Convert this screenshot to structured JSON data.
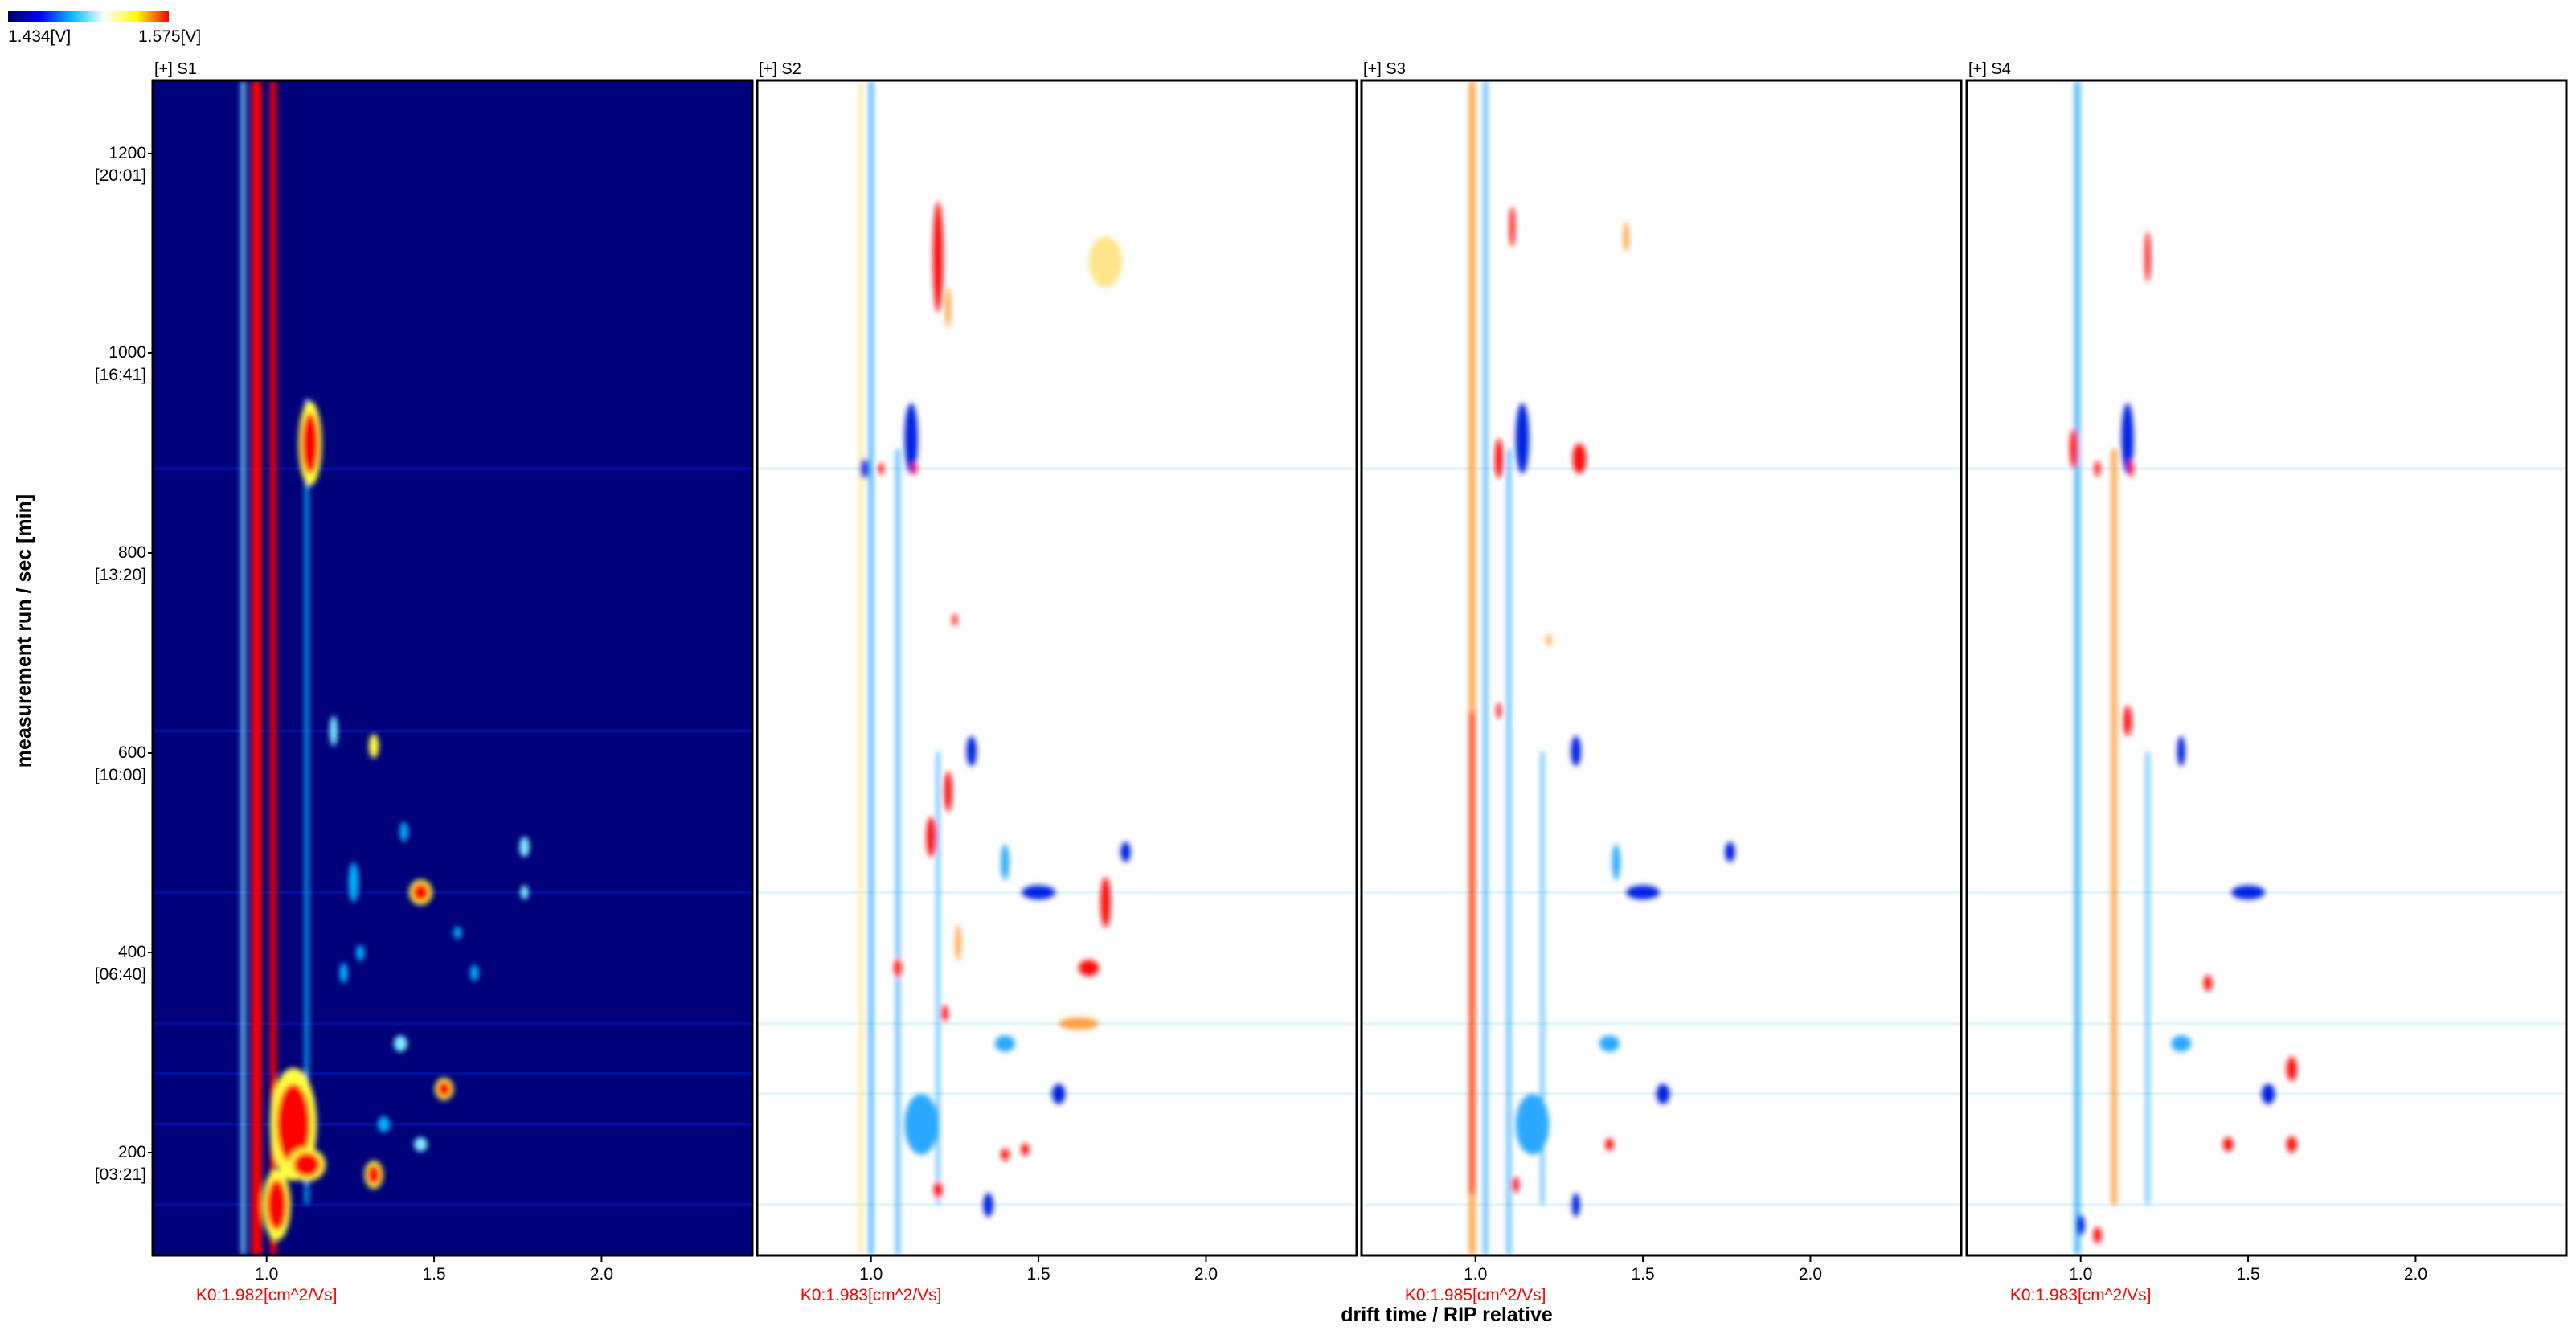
{
  "colorbar": {
    "min_label": "1.434[V]",
    "max_label": "1.575[V]",
    "colors": [
      "#000060",
      "#0000ff",
      "#00bfff",
      "#ffffff",
      "#ffff00",
      "#ff0000"
    ]
  },
  "y_axis": {
    "label": "measurement run / sec [min]",
    "ticks": [
      {
        "value": 200,
        "sec": "200",
        "min": "[03:21]"
      },
      {
        "value": 400,
        "sec": "400",
        "min": "[06:40]"
      },
      {
        "value": 600,
        "sec": "600",
        "min": "[10:00]"
      },
      {
        "value": 800,
        "sec": "800",
        "min": "[13:20]"
      },
      {
        "value": 1000,
        "sec": "1000",
        "min": "[16:41]"
      },
      {
        "value": 1200,
        "sec": "1200",
        "min": "[20:01]"
      }
    ]
  },
  "x_axis": {
    "label": "drift time / RIP relative",
    "ticks": [
      {
        "value": 1.0,
        "label": "1.0"
      },
      {
        "value": 1.5,
        "label": "1.5"
      },
      {
        "value": 2.0,
        "label": "2.0"
      }
    ]
  },
  "colors": {
    "background_low": "#00007a",
    "difference_bg": "#ffffff",
    "k0_label": "#ff0000",
    "positive": "#ff0000",
    "negative": "#0000ff"
  },
  "chart_data": {
    "type": "heatmap",
    "xlim": [
      0.66,
      2.45
    ],
    "ylim": [
      100,
      1265
    ],
    "panels": [
      {
        "title": "[+] S1",
        "k0": "K0:1.982[cm^2/Vs]",
        "mode": "reference",
        "lines": [
          {
            "x": 0.93,
            "y0": 100,
            "y1": 1265,
            "w": 0.012,
            "level": 0.65
          },
          {
            "x": 0.97,
            "y0": 100,
            "y1": 1265,
            "w": 0.03,
            "level": 1.0
          },
          {
            "x": 1.02,
            "y0": 100,
            "y1": 1265,
            "w": 0.018,
            "level": 1.0
          },
          {
            "x": 1.12,
            "y0": 150,
            "y1": 950,
            "w": 0.012,
            "level": 0.5
          }
        ],
        "spots": [
          {
            "x": 1.13,
            "y": 905,
            "rx": 0.025,
            "ry": 30,
            "level": 1.0
          },
          {
            "x": 1.08,
            "y": 230,
            "rx": 0.05,
            "ry": 40,
            "level": 1.0
          },
          {
            "x": 1.12,
            "y": 190,
            "rx": 0.04,
            "ry": 12,
            "level": 1.0
          },
          {
            "x": 1.32,
            "y": 180,
            "rx": 0.02,
            "ry": 10,
            "level": 1.0
          },
          {
            "x": 1.46,
            "y": 460,
            "rx": 0.025,
            "ry": 9,
            "level": 1.0
          },
          {
            "x": 1.53,
            "y": 265,
            "rx": 0.02,
            "ry": 8,
            "level": 1.0
          },
          {
            "x": 1.32,
            "y": 605,
            "rx": 0.015,
            "ry": 12,
            "level": 0.9
          },
          {
            "x": 1.2,
            "y": 620,
            "rx": 0.012,
            "ry": 15,
            "level": 0.6
          },
          {
            "x": 1.77,
            "y": 505,
            "rx": 0.015,
            "ry": 10,
            "level": 0.75
          },
          {
            "x": 1.77,
            "y": 460,
            "rx": 0.012,
            "ry": 7,
            "level": 0.6
          },
          {
            "x": 1.26,
            "y": 470,
            "rx": 0.015,
            "ry": 20,
            "level": 0.5
          },
          {
            "x": 1.4,
            "y": 310,
            "rx": 0.02,
            "ry": 8,
            "level": 0.6
          },
          {
            "x": 1.35,
            "y": 230,
            "rx": 0.018,
            "ry": 8,
            "level": 0.55
          },
          {
            "x": 1.46,
            "y": 210,
            "rx": 0.02,
            "ry": 7,
            "level": 0.7
          },
          {
            "x": 1.03,
            "y": 150,
            "rx": 0.03,
            "ry": 25,
            "level": 1.0
          },
          {
            "x": 1.23,
            "y": 380,
            "rx": 0.012,
            "ry": 10,
            "level": 0.55
          },
          {
            "x": 1.28,
            "y": 400,
            "rx": 0.012,
            "ry": 8,
            "level": 0.5
          },
          {
            "x": 1.62,
            "y": 380,
            "rx": 0.012,
            "ry": 8,
            "level": 0.5
          },
          {
            "x": 1.57,
            "y": 420,
            "rx": 0.012,
            "ry": 6,
            "level": 0.45
          },
          {
            "x": 1.41,
            "y": 520,
            "rx": 0.012,
            "ry": 10,
            "level": 0.5
          }
        ]
      },
      {
        "title": "[+] S2",
        "k0": "K0:1.983[cm^2/Vs]",
        "mode": "difference",
        "lines": [
          {
            "x": 1.0,
            "y0": 100,
            "y1": 1265,
            "w": 0.012,
            "level": -0.55
          },
          {
            "x": 0.97,
            "y0": 100,
            "y1": 1265,
            "w": 0.01,
            "level": 0.25
          },
          {
            "x": 1.08,
            "y0": 100,
            "y1": 900,
            "w": 0.01,
            "level": -0.6
          },
          {
            "x": 1.2,
            "y0": 150,
            "y1": 600,
            "w": 0.008,
            "level": -0.35
          }
        ],
        "spots": [
          {
            "x": 1.2,
            "y": 1090,
            "rx": 0.015,
            "ry": 55,
            "level": 1.0
          },
          {
            "x": 1.23,
            "y": 1040,
            "rx": 0.008,
            "ry": 20,
            "level": 0.6
          },
          {
            "x": 1.12,
            "y": 910,
            "rx": 0.02,
            "ry": 35,
            "level": -1.0
          },
          {
            "x": 0.98,
            "y": 880,
            "rx": 0.012,
            "ry": 10,
            "level": -0.8
          },
          {
            "x": 1.7,
            "y": 1085,
            "rx": 0.05,
            "ry": 25,
            "level": 0.22
          },
          {
            "x": 1.18,
            "y": 515,
            "rx": 0.015,
            "ry": 20,
            "level": 1.0
          },
          {
            "x": 1.7,
            "y": 450,
            "rx": 0.015,
            "ry": 25,
            "level": 1.0
          },
          {
            "x": 1.65,
            "y": 385,
            "rx": 0.03,
            "ry": 8,
            "level": 1.0
          },
          {
            "x": 1.62,
            "y": 330,
            "rx": 0.06,
            "ry": 6,
            "level": 0.4
          },
          {
            "x": 1.76,
            "y": 500,
            "rx": 0.015,
            "ry": 10,
            "level": -1.0
          },
          {
            "x": 1.5,
            "y": 460,
            "rx": 0.05,
            "ry": 7,
            "level": -0.9
          },
          {
            "x": 1.3,
            "y": 600,
            "rx": 0.015,
            "ry": 15,
            "level": -0.8
          },
          {
            "x": 1.4,
            "y": 490,
            "rx": 0.012,
            "ry": 18,
            "level": -0.6
          },
          {
            "x": 1.23,
            "y": 560,
            "rx": 0.012,
            "ry": 20,
            "level": 1.0
          },
          {
            "x": 1.56,
            "y": 260,
            "rx": 0.02,
            "ry": 10,
            "level": -1.0
          },
          {
            "x": 1.4,
            "y": 200,
            "rx": 0.012,
            "ry": 6,
            "level": 1.0
          },
          {
            "x": 1.46,
            "y": 205,
            "rx": 0.012,
            "ry": 6,
            "level": 1.0
          },
          {
            "x": 1.35,
            "y": 150,
            "rx": 0.015,
            "ry": 12,
            "level": -1.0
          },
          {
            "x": 1.2,
            "y": 165,
            "rx": 0.012,
            "ry": 8,
            "level": 1.0
          },
          {
            "x": 1.15,
            "y": 230,
            "rx": 0.05,
            "ry": 30,
            "level": -0.6
          },
          {
            "x": 1.08,
            "y": 385,
            "rx": 0.01,
            "ry": 10,
            "level": 1.0
          },
          {
            "x": 1.22,
            "y": 340,
            "rx": 0.01,
            "ry": 8,
            "level": 1.0
          },
          {
            "x": 1.4,
            "y": 310,
            "rx": 0.03,
            "ry": 8,
            "level": -0.6
          },
          {
            "x": 1.13,
            "y": 880,
            "rx": 0.008,
            "ry": 6,
            "level": 1.0
          },
          {
            "x": 1.03,
            "y": 880,
            "rx": 0.008,
            "ry": 6,
            "level": 1.0
          },
          {
            "x": 1.25,
            "y": 730,
            "rx": 0.006,
            "ry": 6,
            "level": 1.0
          },
          {
            "x": 1.26,
            "y": 410,
            "rx": 0.008,
            "ry": 18,
            "level": 0.6
          }
        ]
      },
      {
        "title": "[+] S3",
        "k0": "K0:1.985[cm^2/Vs]",
        "mode": "difference",
        "lines": [
          {
            "x": 0.99,
            "y0": 100,
            "y1": 1265,
            "w": 0.018,
            "level": 0.45
          },
          {
            "x": 0.99,
            "y0": 160,
            "y1": 640,
            "w": 0.014,
            "level": 0.95
          },
          {
            "x": 1.03,
            "y0": 100,
            "y1": 1265,
            "w": 0.01,
            "level": -0.6
          },
          {
            "x": 1.1,
            "y0": 100,
            "y1": 900,
            "w": 0.01,
            "level": -0.6
          },
          {
            "x": 1.2,
            "y0": 150,
            "y1": 600,
            "w": 0.008,
            "level": -0.35
          }
        ],
        "spots": [
          {
            "x": 1.14,
            "y": 910,
            "rx": 0.02,
            "ry": 35,
            "level": -1.0
          },
          {
            "x": 1.07,
            "y": 890,
            "rx": 0.012,
            "ry": 20,
            "level": 1.0
          },
          {
            "x": 1.31,
            "y": 890,
            "rx": 0.02,
            "ry": 15,
            "level": 1.0
          },
          {
            "x": 1.11,
            "y": 1120,
            "rx": 0.008,
            "ry": 20,
            "level": 0.7
          },
          {
            "x": 1.45,
            "y": 1110,
            "rx": 0.008,
            "ry": 15,
            "level": 0.35
          },
          {
            "x": 1.76,
            "y": 500,
            "rx": 0.015,
            "ry": 10,
            "level": -1.0
          },
          {
            "x": 1.5,
            "y": 460,
            "rx": 0.05,
            "ry": 7,
            "level": -0.9
          },
          {
            "x": 1.3,
            "y": 600,
            "rx": 0.015,
            "ry": 15,
            "level": -0.8
          },
          {
            "x": 1.42,
            "y": 490,
            "rx": 0.012,
            "ry": 18,
            "level": -0.6
          },
          {
            "x": 1.56,
            "y": 260,
            "rx": 0.02,
            "ry": 10,
            "level": -1.0
          },
          {
            "x": 1.4,
            "y": 210,
            "rx": 0.012,
            "ry": 6,
            "level": 0.9
          },
          {
            "x": 1.3,
            "y": 150,
            "rx": 0.012,
            "ry": 12,
            "level": -1.0
          },
          {
            "x": 1.17,
            "y": 230,
            "rx": 0.05,
            "ry": 30,
            "level": -0.6
          },
          {
            "x": 1.12,
            "y": 170,
            "rx": 0.01,
            "ry": 8,
            "level": 1.0
          },
          {
            "x": 1.4,
            "y": 310,
            "rx": 0.03,
            "ry": 8,
            "level": -0.6
          },
          {
            "x": 1.22,
            "y": 710,
            "rx": 0.006,
            "ry": 6,
            "level": 0.5
          },
          {
            "x": 1.07,
            "y": 640,
            "rx": 0.006,
            "ry": 8,
            "level": 1.0
          }
        ]
      },
      {
        "title": "[+] S4",
        "k0": "K0:1.983[cm^2/Vs]",
        "mode": "difference",
        "lines": [
          {
            "x": 0.99,
            "y0": 100,
            "y1": 1265,
            "w": 0.014,
            "level": -0.55
          },
          {
            "x": 1.1,
            "y0": 150,
            "y1": 900,
            "w": 0.016,
            "level": 0.45
          },
          {
            "x": 1.2,
            "y0": 150,
            "y1": 600,
            "w": 0.008,
            "level": -0.35
          }
        ],
        "spots": [
          {
            "x": 1.14,
            "y": 910,
            "rx": 0.018,
            "ry": 35,
            "level": -1.0
          },
          {
            "x": 1.2,
            "y": 1090,
            "rx": 0.008,
            "ry": 25,
            "level": 0.8
          },
          {
            "x": 0.98,
            "y": 900,
            "rx": 0.012,
            "ry": 20,
            "level": 0.8
          },
          {
            "x": 1.05,
            "y": 880,
            "rx": 0.008,
            "ry": 8,
            "level": 1.0
          },
          {
            "x": 1.15,
            "y": 880,
            "rx": 0.008,
            "ry": 8,
            "level": 1.0
          },
          {
            "x": 1.5,
            "y": 460,
            "rx": 0.05,
            "ry": 7,
            "level": -0.8
          },
          {
            "x": 1.63,
            "y": 285,
            "rx": 0.015,
            "ry": 12,
            "level": 1.0
          },
          {
            "x": 1.63,
            "y": 210,
            "rx": 0.015,
            "ry": 8,
            "level": 1.0
          },
          {
            "x": 1.14,
            "y": 630,
            "rx": 0.012,
            "ry": 15,
            "level": 1.0
          },
          {
            "x": 1.3,
            "y": 600,
            "rx": 0.012,
            "ry": 15,
            "level": -0.7
          },
          {
            "x": 1.56,
            "y": 260,
            "rx": 0.02,
            "ry": 10,
            "level": -0.7
          },
          {
            "x": 1.44,
            "y": 210,
            "rx": 0.015,
            "ry": 7,
            "level": 1.0
          },
          {
            "x": 1.3,
            "y": 310,
            "rx": 0.03,
            "ry": 8,
            "level": -0.6
          },
          {
            "x": 1.0,
            "y": 130,
            "rx": 0.012,
            "ry": 10,
            "level": -1.0
          },
          {
            "x": 1.05,
            "y": 120,
            "rx": 0.012,
            "ry": 8,
            "level": 1.0
          },
          {
            "x": 1.38,
            "y": 370,
            "rx": 0.012,
            "ry": 8,
            "level": 1.0
          }
        ]
      }
    ]
  }
}
